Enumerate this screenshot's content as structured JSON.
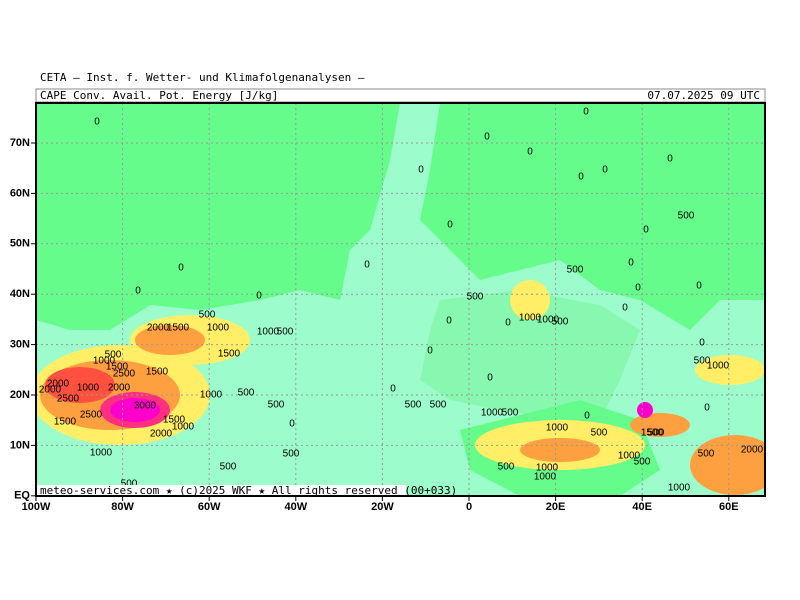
{
  "header": {
    "title": "CETA — Inst. f. Wetter- und Klimafolgenanalysen —",
    "field": "CAPE Conv. Avail. Pot. Energy [J/kg]",
    "valid_time": "07.07.2025 09 UTC"
  },
  "axes": {
    "latitude_labels": [
      "70N",
      "60N",
      "50N",
      "40N",
      "30N",
      "20N",
      "10N",
      "EQ"
    ],
    "longitude_labels": [
      "100W",
      "80W",
      "60W",
      "40W",
      "20W",
      "0",
      "20E",
      "40E",
      "60E"
    ]
  },
  "contour_labels": [
    "0",
    "0",
    "0",
    "0",
    "0",
    "0",
    "0",
    "0",
    "500",
    "0",
    "0",
    "0",
    "0",
    "500",
    "0",
    "0",
    "0",
    "500",
    "0",
    "0",
    "500",
    "2000",
    "1500",
    "1000",
    "1000",
    "500",
    "0",
    "0",
    "1000",
    "1000",
    "500",
    "0",
    "0",
    "500",
    "1000",
    "1500",
    "0",
    "1500",
    "1500",
    "2500",
    "500",
    "1000",
    "0",
    "2000",
    "2000",
    "1000",
    "2000",
    "0",
    "1000",
    "500",
    "2500",
    "500",
    "500",
    "500",
    "0",
    "3000",
    "2500",
    "1000",
    "500",
    "0",
    "1500",
    "1500",
    "1000",
    "2000",
    "1000",
    "500",
    "0",
    "1500",
    "500",
    "1000",
    "500",
    "1000",
    "500",
    "500",
    "2000",
    "500",
    "500",
    "1000",
    "1000",
    "500",
    "500",
    "1000"
  ],
  "footer": "meteo-services.com ★ (c)2025 WKF ★ All rights reserved (00+033)"
}
